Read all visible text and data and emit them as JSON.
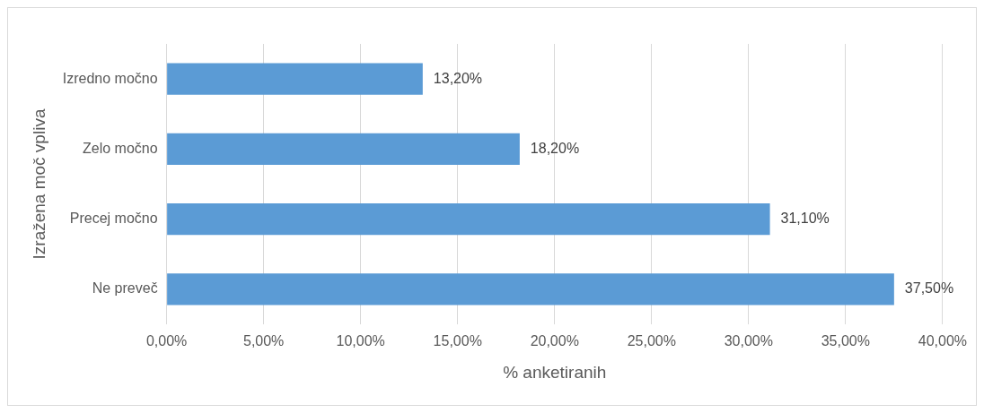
{
  "chart_data": {
    "type": "bar",
    "orientation": "horizontal",
    "xlabel": "% anketiranih",
    "ylabel": "Izražena moč vpliva",
    "categories": [
      "Izredno močno",
      "Zelo močno",
      "Precej močno",
      "Ne preveč"
    ],
    "values": [
      13.2,
      18.2,
      31.1,
      37.5
    ],
    "color": "#5b9bd5",
    "value_labels": [
      "13,20%",
      "18,20%",
      "31,10%",
      "37,50%"
    ],
    "xlim": [
      0,
      40
    ],
    "xticks": [
      {
        "value": 0,
        "label": "0,00%"
      },
      {
        "value": 5,
        "label": "5,00%"
      },
      {
        "value": 10,
        "label": "10,00%"
      },
      {
        "value": 15,
        "label": "15,00%"
      },
      {
        "value": 20,
        "label": "20,00%"
      },
      {
        "value": 25,
        "label": "25,00%"
      },
      {
        "value": 30,
        "label": "30,00%"
      },
      {
        "value": 35,
        "label": "35,00%"
      },
      {
        "value": 40,
        "label": "40,00%"
      }
    ],
    "grid": "x",
    "legend": false
  }
}
